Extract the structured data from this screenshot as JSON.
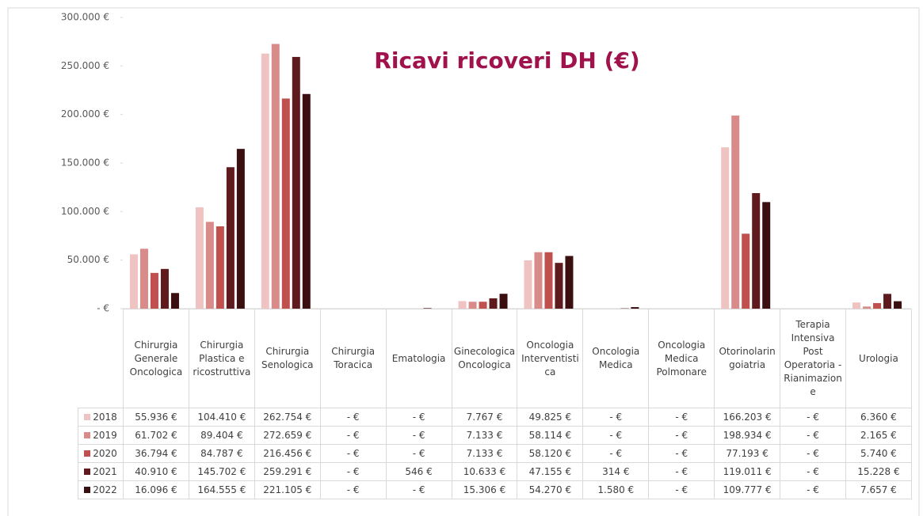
{
  "chart_data": {
    "type": "bar",
    "title": "Ricavi ricoveri DH (€)",
    "categories": [
      "Chirurgia Generale Oncologica",
      "Chirurgia Plastica e ricostruttiva",
      "Chirurgia Senologica",
      "Chirurgia Toracica",
      "Ematologia",
      "Ginecologica Oncologica",
      "Oncologia Interventistica",
      "Oncologia Medica",
      "Oncologia Medica Polmonare",
      "Otorinolaringoiatria",
      "Terapia Intensiva Post Operatoria - Rianimazione",
      "Urologia"
    ],
    "series": [
      {
        "name": "2018",
        "color": "#efc3c1",
        "values": [
          55936,
          104410,
          262754,
          0,
          0,
          7767,
          49825,
          0,
          0,
          166203,
          0,
          6360
        ],
        "value_labels": [
          "55.936 €",
          "104.410 €",
          "262.754 €",
          "- €",
          "- €",
          "7.767 €",
          "49.825 €",
          "- €",
          "- €",
          "166.203 €",
          "- €",
          "6.360 €"
        ]
      },
      {
        "name": "2019",
        "color": "#d88b89",
        "values": [
          61702,
          89404,
          272659,
          0,
          0,
          7133,
          58114,
          0,
          0,
          198934,
          0,
          2165
        ],
        "value_labels": [
          "61.702 €",
          "89.404 €",
          "272.659 €",
          "- €",
          "- €",
          "7.133 €",
          "58.114 €",
          "- €",
          "- €",
          "198.934 €",
          "- €",
          "2.165 €"
        ]
      },
      {
        "name": "2020",
        "color": "#c0504d",
        "values": [
          36794,
          84787,
          216456,
          0,
          0,
          7133,
          58120,
          0,
          0,
          77193,
          0,
          5740
        ],
        "value_labels": [
          "36.794 €",
          "84.787 €",
          "216.456 €",
          "- €",
          "- €",
          "7.133 €",
          "58.120 €",
          "- €",
          "- €",
          "77.193 €",
          "- €",
          "5.740 €"
        ]
      },
      {
        "name": "2021",
        "color": "#5e1a1c",
        "values": [
          40910,
          145702,
          259291,
          0,
          546,
          10633,
          47155,
          314,
          0,
          119011,
          0,
          15228
        ],
        "value_labels": [
          "40.910 €",
          "145.702 €",
          "259.291 €",
          "- €",
          "546 €",
          "10.633 €",
          "47.155 €",
          "314 €",
          "- €",
          "119.011 €",
          "- €",
          "15.228 €"
        ]
      },
      {
        "name": "2022",
        "color": "#3b0e10",
        "values": [
          16096,
          164555,
          221105,
          0,
          0,
          15306,
          54270,
          1580,
          0,
          109777,
          0,
          7657
        ],
        "value_labels": [
          "16.096 €",
          "164.555 €",
          "221.105 €",
          "- €",
          "- €",
          "15.306 €",
          "54.270 €",
          "1.580 €",
          "- €",
          "109.777 €",
          "- €",
          "7.657 €"
        ]
      }
    ],
    "ylim": [
      0,
      300000
    ],
    "yticks": [
      {
        "value": 0,
        "label": "- €"
      },
      {
        "value": 50000,
        "label": "50.000 €"
      },
      {
        "value": 100000,
        "label": "100.000 €"
      },
      {
        "value": 150000,
        "label": "150.000 €"
      },
      {
        "value": 200000,
        "label": "200.000 €"
      },
      {
        "value": 250000,
        "label": "250.000 €"
      },
      {
        "value": 300000,
        "label": "300.000 €"
      }
    ],
    "legend": "table"
  }
}
